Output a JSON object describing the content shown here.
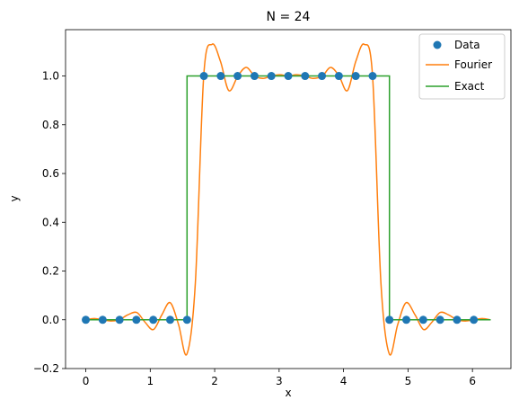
{
  "chart_data": {
    "type": "line",
    "title": "N = 24",
    "xlabel": "x",
    "ylabel": "y",
    "xlim": [
      -0.314,
      6.597
    ],
    "ylim": [
      -0.2,
      1.19
    ],
    "xticks": [
      0,
      1,
      2,
      3,
      4,
      5,
      6
    ],
    "yticks": [
      -0.2,
      0.0,
      0.2,
      0.4,
      0.6,
      0.8,
      1.0
    ],
    "ytick_labels": [
      "−0.2",
      "0.0",
      "0.2",
      "0.4",
      "0.6",
      "0.8",
      "1.0"
    ],
    "grid": false,
    "legend_position": "top-right",
    "n_points": 24,
    "colors": {
      "data": "#1f77b4",
      "fourier": "#ff7f0e",
      "exact": "#2ca02c"
    },
    "series": [
      {
        "name": "Data",
        "style": "markers",
        "x": [
          0,
          0.262,
          0.524,
          0.785,
          1.047,
          1.309,
          1.571,
          1.833,
          2.094,
          2.356,
          2.618,
          2.88,
          3.142,
          3.403,
          3.665,
          3.927,
          4.189,
          4.451,
          4.712,
          4.974,
          5.236,
          5.498,
          5.76,
          6.021
        ],
        "values": [
          0,
          0,
          0,
          0,
          0,
          0,
          0,
          1,
          1,
          1,
          1,
          1,
          1,
          1,
          1,
          1,
          1,
          1,
          0,
          0,
          0,
          0,
          0,
          0
        ]
      },
      {
        "name": "Fourier",
        "style": "line",
        "x": [
          0,
          0.13,
          0.26,
          0.39,
          0.52,
          0.65,
          0.79,
          0.92,
          1.05,
          1.18,
          1.31,
          1.44,
          1.57,
          1.7,
          1.83,
          1.96,
          2.09,
          2.22,
          2.36,
          2.49,
          2.62,
          2.75,
          2.88,
          3.01,
          3.14,
          3.27,
          3.4,
          3.53,
          3.67,
          3.8,
          3.93,
          4.06,
          4.19,
          4.32,
          4.45,
          4.58,
          4.71,
          4.84,
          4.97,
          5.11,
          5.24,
          5.37,
          5.5,
          5.63,
          5.76,
          5.89,
          6.02,
          6.15,
          6.28
        ],
        "values": [
          0,
          0.005,
          0.0,
          -0.005,
          0.0,
          0.02,
          0.03,
          -0.01,
          -0.04,
          0.02,
          0.07,
          -0.02,
          -0.14,
          0.15,
          1.0,
          1.13,
          1.06,
          0.94,
          1.0,
          1.035,
          1.0,
          0.99,
          1.0,
          1.005,
          1.0,
          1.005,
          1.0,
          0.99,
          1.0,
          1.035,
          1.0,
          0.94,
          1.06,
          1.13,
          1.0,
          0.15,
          -0.14,
          -0.02,
          0.07,
          0.02,
          -0.04,
          -0.01,
          0.03,
          0.02,
          0.0,
          -0.005,
          0.0,
          0.005,
          0
        ]
      },
      {
        "name": "Exact",
        "style": "step",
        "x": [
          0,
          1.571,
          1.571,
          4.712,
          4.712,
          6.283
        ],
        "values": [
          0,
          0,
          1,
          1,
          0,
          0
        ]
      }
    ]
  }
}
